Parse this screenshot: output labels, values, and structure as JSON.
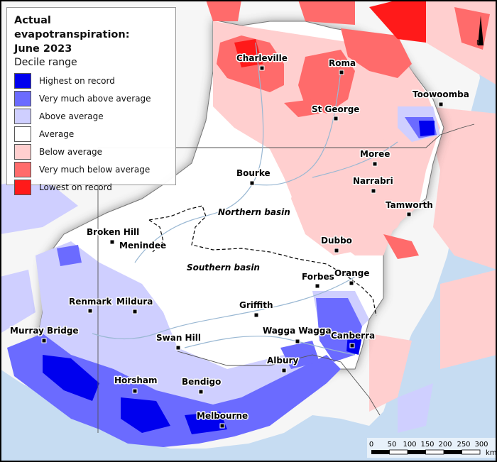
{
  "legend": {
    "title_line1": "Actual evapotranspiration:",
    "title_line2": "June 2023",
    "subtitle": "Decile range",
    "items": [
      {
        "label": "Highest on record",
        "color": "#0000ee"
      },
      {
        "label": "Very much above average",
        "color": "#6b6bff"
      },
      {
        "label": "Above average",
        "color": "#cfcfff"
      },
      {
        "label": "Average",
        "color": "#ffffff"
      },
      {
        "label": "Below average",
        "color": "#ffcfcf"
      },
      {
        "label": "Very much below average",
        "color": "#ff6b6b"
      },
      {
        "label": "Lowest on record",
        "color": "#ff1a1a"
      }
    ]
  },
  "basins": {
    "northern": "Northern basin",
    "southern": "Southern basin"
  },
  "towns": [
    {
      "key": "charleville",
      "name": "Charleville"
    },
    {
      "key": "roma",
      "name": "Roma"
    },
    {
      "key": "toowoomba",
      "name": "Toowoomba"
    },
    {
      "key": "st-george",
      "name": "St George"
    },
    {
      "key": "moree",
      "name": "Moree"
    },
    {
      "key": "bourke",
      "name": "Bourke"
    },
    {
      "key": "narrabri",
      "name": "Narrabri"
    },
    {
      "key": "tamworth",
      "name": "Tamworth"
    },
    {
      "key": "broken-hill",
      "name": "Broken Hill"
    },
    {
      "key": "menindee",
      "name": "Menindee"
    },
    {
      "key": "dubbo",
      "name": "Dubbo"
    },
    {
      "key": "forbes",
      "name": "Forbes"
    },
    {
      "key": "orange",
      "name": "Orange"
    },
    {
      "key": "renmark",
      "name": "Renmark"
    },
    {
      "key": "mildura",
      "name": "Mildura"
    },
    {
      "key": "griffith",
      "name": "Griffith"
    },
    {
      "key": "murray-bridge",
      "name": "Murray Bridge"
    },
    {
      "key": "wagga-wagga",
      "name": "Wagga Wagga"
    },
    {
      "key": "canberra",
      "name": "Canberra"
    },
    {
      "key": "swan-hill",
      "name": "Swan Hill"
    },
    {
      "key": "albury",
      "name": "Albury"
    },
    {
      "key": "horsham",
      "name": "Horsham"
    },
    {
      "key": "bendigo",
      "name": "Bendigo"
    },
    {
      "key": "melbourne",
      "name": "Melbourne"
    }
  ],
  "scale_bar": {
    "ticks": [
      "0",
      "50",
      "100",
      "150",
      "200",
      "250",
      "300"
    ],
    "unit": "km"
  },
  "north_arrow": {
    "label": "N"
  }
}
